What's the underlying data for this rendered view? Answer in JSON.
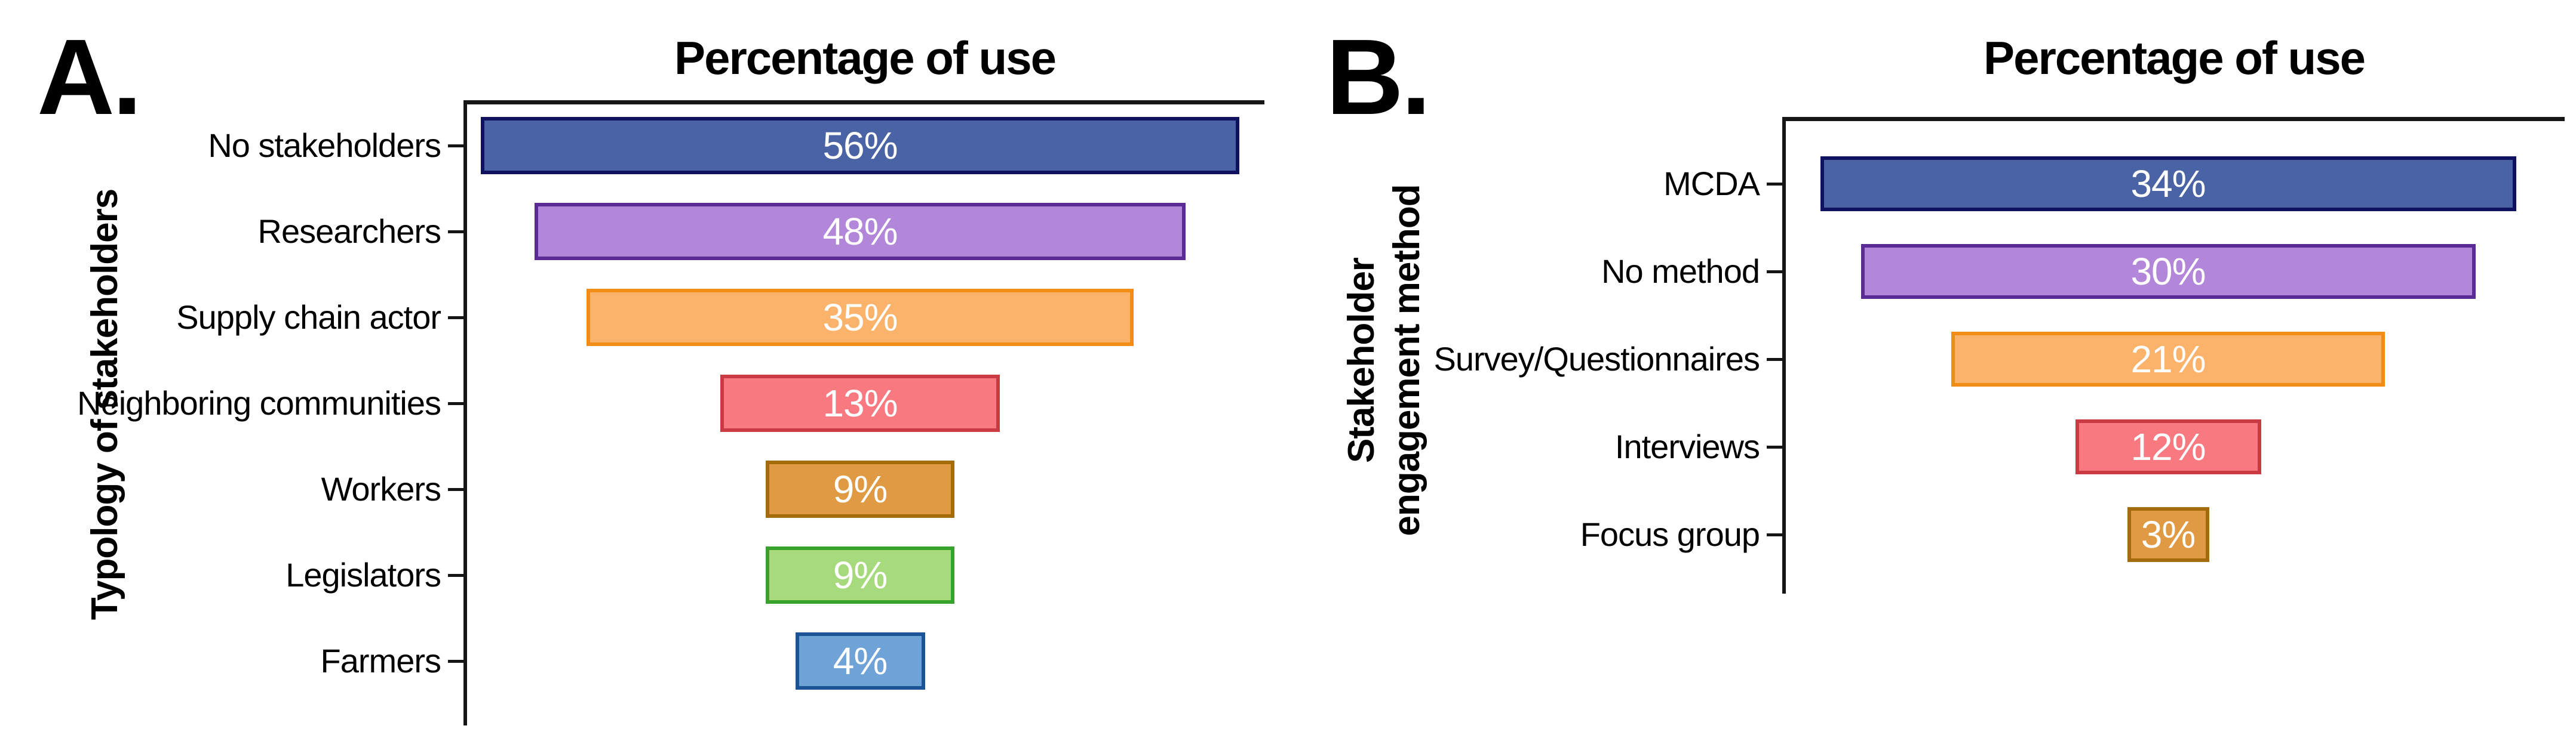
{
  "figure": {
    "background": "#ffffff",
    "axis_color": "#161616",
    "value_text_color": "#ffffff"
  },
  "chart_data": [
    {
      "type": "bar",
      "layout_style": "horizontal-centered-funnel",
      "panel_label": "A.",
      "title": "Percentage of use",
      "ylabel_lines": [
        "Typology of stakeholders"
      ],
      "categories": [
        "No stakeholders",
        "Researchers",
        "Supply chain actor",
        "Neighboring communities",
        "Workers",
        "Legislators",
        "Farmers"
      ],
      "values": [
        56,
        48,
        35,
        13,
        9,
        9,
        4
      ],
      "value_labels": [
        "56%",
        "48%",
        "35%",
        "13%",
        "9%",
        "9%",
        "4%"
      ],
      "unit": "%",
      "legend": "none",
      "grid": "off",
      "bar_fills": [
        "#4A63A4",
        "#B286D9",
        "#FBB26A",
        "#F87A80",
        "#E09A43",
        "#A6DA7C",
        "#6FA3D8"
      ],
      "bar_borders": [
        "#10125F",
        "#5A2B94",
        "#F28C16",
        "#C93A43",
        "#A56A0A",
        "#37A32C",
        "#1B5494"
      ]
    },
    {
      "type": "bar",
      "layout_style": "horizontal-centered-funnel",
      "panel_label": "B.",
      "title": "Percentage of use",
      "ylabel_lines": [
        "Stakeholder",
        "engagement method"
      ],
      "categories": [
        "MCDA",
        "No method",
        "Survey/Questionnaires",
        "Interviews",
        "Focus group"
      ],
      "values": [
        34,
        30,
        21,
        12,
        3
      ],
      "value_labels": [
        "34%",
        "30%",
        "21%",
        "12%",
        "3%"
      ],
      "unit": "%",
      "legend": "none",
      "grid": "off",
      "bar_fills": [
        "#4A63A4",
        "#B286D9",
        "#FBB26A",
        "#F87A80",
        "#E09A43"
      ],
      "bar_borders": [
        "#10125F",
        "#5A2B94",
        "#F28C16",
        "#C93A43",
        "#A56A0A"
      ]
    }
  ]
}
